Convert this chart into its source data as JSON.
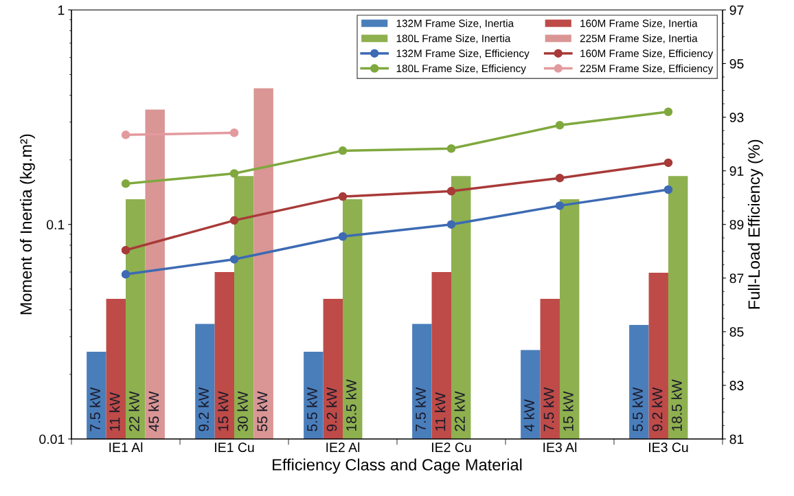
{
  "chart_data": {
    "type": "bar",
    "xlabel": "Efficiency Class and Cage Material",
    "ylabel": "Moment of Inertia (kg.m²)",
    "y2label": "Full-Load Efficiency (%)",
    "categories": [
      "IE1 Al",
      "IE1 Cu",
      "IE2 Al",
      "IE2 Cu",
      "IE3 Al",
      "IE3 Cu"
    ],
    "log": "y",
    "ylim": [
      0.01,
      1
    ],
    "yticks": [
      0.01,
      0.1,
      1
    ],
    "y2lim": [
      81,
      97
    ],
    "y2ticks": [
      81,
      83,
      85,
      87,
      89,
      91,
      93,
      95,
      97
    ],
    "grid": false,
    "legend": "top right",
    "marker": "circle",
    "annotations": [
      "7.5 kW",
      "11 kW",
      "22 kW",
      "45 kW",
      "9.2 kW",
      "15 kW",
      "30 kW",
      "55 kW",
      "5.5 kW",
      "9.2 kW",
      "18.5 kW",
      "7.5 kW",
      "11 kW",
      "22 kW",
      "4 kW",
      "7.5 kW",
      "15 kW",
      "5.5 kW",
      "9.2 kW",
      "18.5 kW"
    ],
    "series": [
      {
        "name": "132M Frame Size, Inertia",
        "color": "#4a7ebb",
        "values": [
          0.0255,
          0.0344,
          0.0255,
          0.0344,
          0.026,
          0.034
        ]
      },
      {
        "name": "160M Frame Size, Inertia",
        "color": "#be4b48",
        "values": [
          0.045,
          0.06,
          0.045,
          0.06,
          0.045,
          0.0595
        ]
      },
      {
        "name": "180L Frame Size, Inertia",
        "color": "#8eb04f",
        "values": [
          0.131,
          0.168,
          0.131,
          0.168,
          0.131,
          0.168
        ]
      },
      {
        "name": "225M Frame Size, Inertia",
        "color": "#d99694",
        "values": [
          0.343,
          0.431,
          null,
          null,
          null,
          null
        ]
      },
      {
        "name": "132M Frame Size, Efficiency",
        "type": "line",
        "axis": "y2",
        "color": "#3d6ab3",
        "values": [
          87.14,
          87.7,
          88.55,
          89.0,
          89.7,
          90.3
        ]
      },
      {
        "name": "160M Frame Size, Efficiency",
        "type": "line",
        "axis": "y2",
        "color": "#a83a38",
        "values": [
          88.04,
          89.15,
          90.04,
          90.24,
          90.73,
          91.3
        ]
      },
      {
        "name": "180L Frame Size, Efficiency",
        "type": "line",
        "axis": "y2",
        "color": "#7fa83e",
        "values": [
          90.52,
          90.9,
          91.75,
          91.83,
          92.7,
          93.2
        ]
      },
      {
        "name": "225M Frame Size, Efficiency",
        "type": "line",
        "axis": "y2",
        "color": "#e39a9e",
        "values": [
          92.34,
          92.42,
          null,
          null,
          null,
          null
        ]
      }
    ]
  }
}
